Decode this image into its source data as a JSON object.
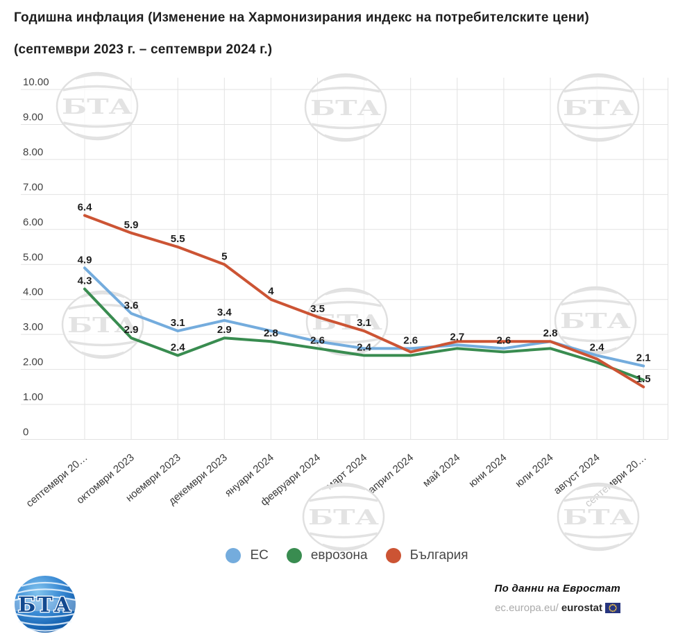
{
  "title": {
    "line1": "Годишна инфлация (Изменение на Хармонизирания индекс на потребителските цени)",
    "line2": "(септември 2023 г. – септември 2024 г.)"
  },
  "watermark": {
    "text": "БТА"
  },
  "logo": {
    "text": "БТА"
  },
  "footer": {
    "source": "По данни на Евростат",
    "url_prefix": "ec.europa.eu/",
    "url_domain": "eurostat"
  },
  "chart_data": {
    "type": "line",
    "title": "Годишна инфлация (Изменение на Хармонизирания индекс на потребителските цени) (септември 2023 г. – септември 2024 г.)",
    "x_categories": [
      "септември 20…",
      "октомври 2023",
      "ноември 2023",
      "декември 2023",
      "януари 2024",
      "февруари 2024",
      "март 2024",
      "април 2024",
      "май 2024",
      "юни 2024",
      "юли 2024",
      "август 2024",
      "септември 20…"
    ],
    "y_ticks": [
      "10.00",
      "9.00",
      "8.00",
      "7.00",
      "6.00",
      "5.00",
      "4.00",
      "3.00",
      "2.00",
      "1.00",
      "0"
    ],
    "ylim": [
      0,
      10.4
    ],
    "grid": true,
    "legend_position": "bottom",
    "series": [
      {
        "name": "ЕС",
        "color": "#74ACDD",
        "values": [
          4.9,
          3.6,
          3.1,
          3.4,
          3.1,
          2.8,
          2.6,
          2.6,
          2.7,
          2.6,
          2.8,
          2.4,
          2.1
        ],
        "labels": [
          "4.9",
          "3.6",
          "3.1",
          "3.4",
          null,
          null,
          null,
          "2.6",
          "2.7",
          "2.6",
          "2.8",
          "2.4",
          "2.1"
        ]
      },
      {
        "name": "еврозона",
        "color": "#398C50",
        "values": [
          4.3,
          2.9,
          2.4,
          2.9,
          2.8,
          2.6,
          2.4,
          2.4,
          2.6,
          2.5,
          2.6,
          2.2,
          1.7
        ],
        "labels": [
          "4.3",
          "2.9",
          "2.4",
          "2.9",
          "2.8",
          "2.6",
          "2.4",
          null,
          null,
          null,
          null,
          null,
          null
        ]
      },
      {
        "name": "България",
        "color": "#CC5434",
        "values": [
          6.4,
          5.9,
          5.5,
          5.0,
          4.0,
          3.5,
          3.1,
          2.5,
          2.8,
          2.8,
          2.8,
          2.3,
          1.5
        ],
        "labels": [
          "6.4",
          "5.9",
          "5.5",
          "5",
          "4",
          "3.5",
          "3.1",
          null,
          null,
          null,
          null,
          null,
          "1.5"
        ]
      }
    ]
  }
}
